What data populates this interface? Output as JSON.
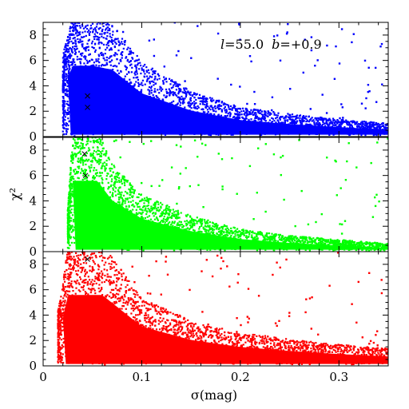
{
  "chart_data": {
    "type": "scatter",
    "layout": "three stacked panels sharing the x axis",
    "annotation": {
      "l_label": "l",
      "l_value": "=55.0",
      "b_label": "b",
      "b_value": "=+0.9"
    },
    "xlabel": "σ(mag)",
    "ylabel": "χ²",
    "xlim": [
      0,
      0.35
    ],
    "x_ticks": [
      0,
      0.1,
      0.2,
      0.3
    ],
    "x_tick_labels": [
      "0",
      "0.1",
      "0.2",
      "0.3"
    ],
    "panels": [
      {
        "id": "top",
        "color": "#0000ff",
        "ylim": [
          0,
          9
        ],
        "y_ticks": [
          0,
          2,
          4,
          6,
          8
        ],
        "y_tick_labels": [
          "0",
          "2",
          "4",
          "6",
          "8"
        ],
        "density_envelope": [
          [
            0.02,
            6
          ],
          [
            0.03,
            9
          ],
          [
            0.05,
            9
          ],
          [
            0.07,
            8.5
          ],
          [
            0.1,
            5.5
          ],
          [
            0.15,
            3.3
          ],
          [
            0.2,
            2.1
          ],
          [
            0.25,
            1.6
          ],
          [
            0.3,
            1.2
          ],
          [
            0.35,
            0.9
          ]
        ],
        "x_min": 0.02,
        "markers": [
          [
            0.045,
            3.2
          ],
          [
            0.045,
            2.3
          ]
        ]
      },
      {
        "id": "middle",
        "color": "#00ff00",
        "ylim": [
          0,
          9
        ],
        "y_ticks": [
          0,
          2,
          4,
          6,
          8
        ],
        "y_tick_labels": [
          "0",
          "2",
          "4",
          "6",
          "8"
        ],
        "density_envelope": [
          [
            0.025,
            3
          ],
          [
            0.03,
            9
          ],
          [
            0.055,
            9
          ],
          [
            0.07,
            6.5
          ],
          [
            0.1,
            4.2
          ],
          [
            0.15,
            2.6
          ],
          [
            0.2,
            1.6
          ],
          [
            0.25,
            1.1
          ],
          [
            0.3,
            0.8
          ],
          [
            0.35,
            0.5
          ]
        ],
        "x_min": 0.025,
        "markers": [
          [
            0.042,
            7.7
          ],
          [
            0.043,
            6.0
          ]
        ]
      },
      {
        "id": "bottom",
        "color": "#ff0000",
        "ylim": [
          0,
          9
        ],
        "y_ticks": [
          0,
          2,
          4,
          6,
          8
        ],
        "y_tick_labels": [
          "0",
          "2",
          "4",
          "6",
          "8"
        ],
        "density_envelope": [
          [
            0.015,
            4
          ],
          [
            0.02,
            6
          ],
          [
            0.025,
            9
          ],
          [
            0.06,
            9
          ],
          [
            0.08,
            7
          ],
          [
            0.1,
            5
          ],
          [
            0.15,
            3.3
          ],
          [
            0.2,
            2.4
          ],
          [
            0.25,
            1.9
          ],
          [
            0.3,
            1.5
          ],
          [
            0.35,
            1.2
          ]
        ],
        "x_min": 0.015,
        "markers": [
          [
            0.045,
            8.4
          ]
        ]
      }
    ]
  }
}
